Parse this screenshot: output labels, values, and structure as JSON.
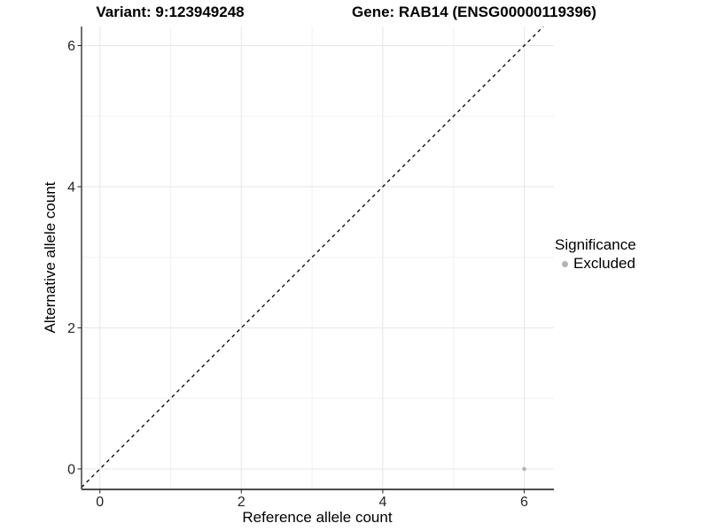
{
  "chart_data": {
    "type": "scatter",
    "titles": [
      "Variant: 9:123949248",
      "Gene: RAB14 (ENSG00000119396)"
    ],
    "xlabel": "Reference allele count",
    "ylabel": "Alternative allele count",
    "xlim": [
      -0.26,
      6.42
    ],
    "ylim": [
      -0.29,
      6.27
    ],
    "xticks": [
      0,
      2,
      4,
      6
    ],
    "yticks": [
      0,
      2,
      4,
      6
    ],
    "xticks_minor": [
      1,
      3,
      5
    ],
    "yticks_minor": [
      1,
      3,
      5
    ],
    "grid": {
      "major_color": "#e6e6e6",
      "minor_color": "#f1f1f1",
      "background": "#ffffff"
    },
    "axis_color": "#333333",
    "identity_line": {
      "style": "dashed",
      "color": "#000000"
    },
    "series": [
      {
        "name": "Excluded",
        "color": "#b3b3b3",
        "points": [
          [
            6,
            0
          ]
        ]
      }
    ],
    "legend": {
      "title": "Significance",
      "position": "right",
      "entries": [
        {
          "label": "Excluded",
          "color": "#b3b3b3"
        }
      ]
    }
  }
}
